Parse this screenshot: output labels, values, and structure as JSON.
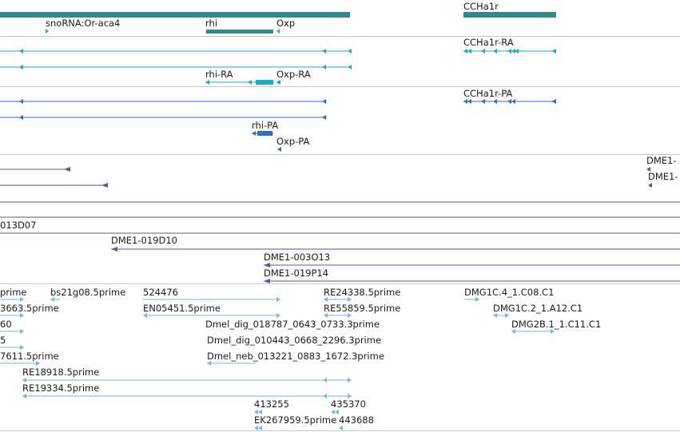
{
  "colors": {
    "gene": "#2e8b87",
    "ncrna": "#2aa7c0",
    "mrna": "#1cabc4",
    "cds": "#2e6fc0",
    "clone": "#6e4c9e",
    "est": "#7ab6d8",
    "separator": "#bdbdbd"
  },
  "icons": {
    "feature_end": "triangle-arrow-icon"
  },
  "tracks": {
    "genes": {
      "labels": [
        "snoRNA:Or-aca4",
        "rhi",
        "Oxp",
        "CCHa1r"
      ]
    },
    "transcripts": {
      "labels": [
        "CCHa1r-RA",
        "rhi-RA",
        "Oxp-RA"
      ]
    },
    "proteins": {
      "labels": [
        "CCHa1r-PA",
        "rhi-PA",
        "Oxp-PA"
      ]
    },
    "clones": {
      "labels": [
        "DME1-",
        "DME1-",
        "013D07",
        "DME1-019D10",
        "DME1-003O13",
        "DME1-019P14"
      ]
    },
    "ests": {
      "labels": [
        "prime",
        "bs21g08.5prime",
        "524476",
        "RE24338.5prime",
        "DMG1C.4_1.C08.C1",
        "3663.5prime",
        "EN05451.5prime",
        "RE55859.5prime",
        "DMG1C.2_1.A12.C1",
        "60",
        "Dmel_dig_018787_0643_0733.3prime",
        "DMG2B.1_1.C11.C1",
        "5",
        "Dmel_dig_010443_0668_2296.3prime",
        "7611.5prime",
        "Dmel_neb_013221_0883_1672.3prime",
        "RE18918.5prime",
        "RE19334.5prime",
        "413255",
        "435370",
        "EK267959.5prime",
        "443688"
      ]
    }
  }
}
